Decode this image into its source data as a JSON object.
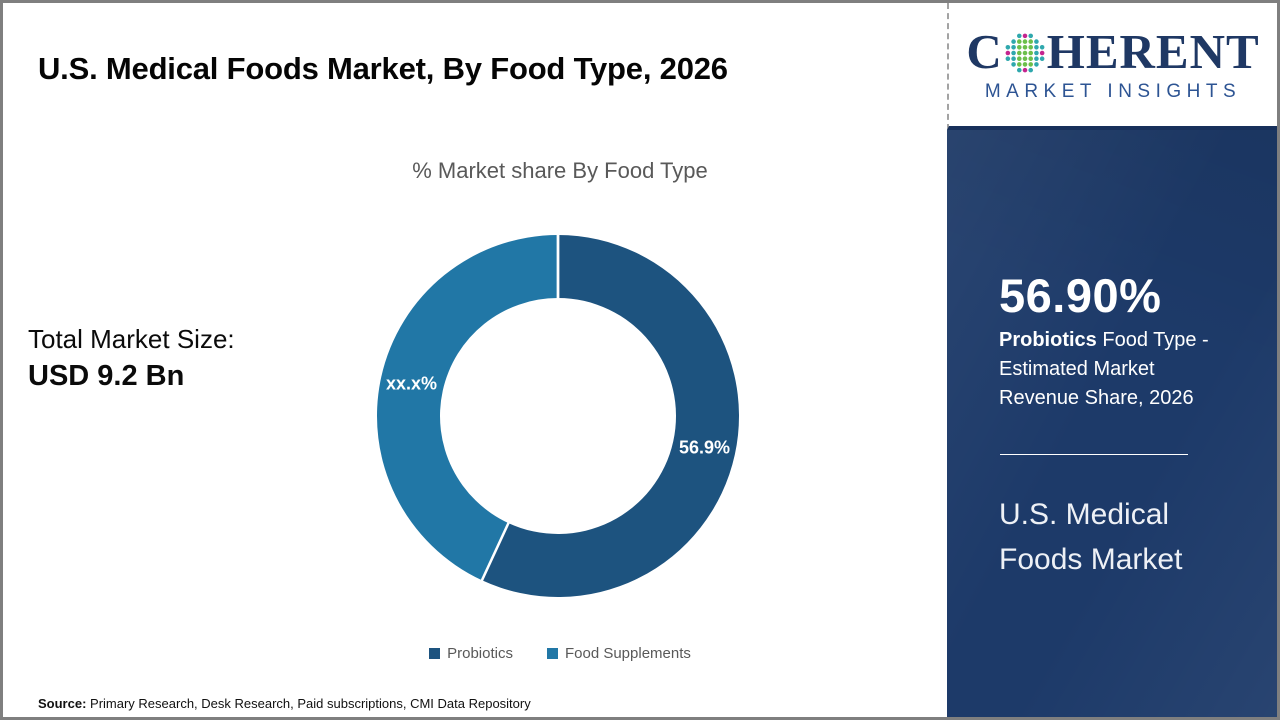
{
  "header": {
    "title": "U.S. Medical Foods Market, By Food Type, 2026"
  },
  "brand": {
    "word_start": "C",
    "word_end": "HERENT",
    "tagline": "MARKET INSIGHTS"
  },
  "chart_data": {
    "type": "pie",
    "subtype": "donut",
    "title": "% Market share By Food Type",
    "slices": [
      {
        "name": "Probiotics",
        "value": 56.9,
        "display_label": "56.9%",
        "color": "#1d537f"
      },
      {
        "name": "Food Supplements",
        "value": 43.1,
        "display_label": "xx.x%",
        "color": "#2177a6"
      }
    ],
    "start_angle_deg": 0,
    "direction": "clockwise",
    "donut_hole_ratio": 0.65,
    "legend_position": "bottom",
    "label_color": "#ffffff"
  },
  "total_market": {
    "label": "Total Market Size:",
    "value": "USD 9.2 Bn"
  },
  "sidebar": {
    "stat_value": "56.90%",
    "stat_desc_bold": "Probiotics",
    "stat_desc_rest": " Food Type - Estimated Market Revenue Share, 2026",
    "panel_title": "U.S. Medical Foods Market",
    "background_color": "#1d3a69"
  },
  "source": {
    "label": "Source:",
    "text": " Primary Research, Desk Research, Paid subscriptions, CMI Data Repository"
  },
  "colors": {
    "accent_dark": "#1d537f",
    "accent_light": "#2177a6",
    "sidebar_navy": "#1d3a69",
    "logo_navy": "#1f3864",
    "muted_text": "#595959",
    "frame_gray": "#7f7f7f"
  }
}
